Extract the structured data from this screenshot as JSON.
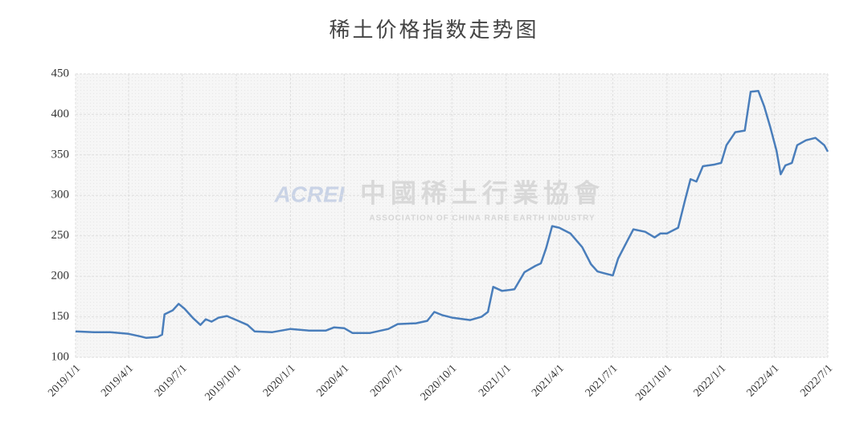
{
  "chart_data": {
    "type": "line",
    "title": "稀土价格指数走势图",
    "watermark": {
      "logo": "ACREI",
      "name": "中國稀土行業協會",
      "subtitle": "ASSOCIATION OF CHINA RARE EARTH INDUSTRY"
    },
    "x": [
      "2019/1/1",
      "2019/2/1",
      "2019/3/1",
      "2019/4/1",
      "2019/4/20",
      "2019/5/1",
      "2019/5/20",
      "2019/5/28",
      "2019/6/1",
      "2019/6/15",
      "2019/6/25",
      "2019/7/5",
      "2019/7/20",
      "2019/8/1",
      "2019/8/10",
      "2019/8/20",
      "2019/9/1",
      "2019/9/15",
      "2019/10/1",
      "2019/10/20",
      "2019/11/1",
      "2019/12/1",
      "2020/1/1",
      "2020/2/1",
      "2020/3/1",
      "2020/3/15",
      "2020/4/1",
      "2020/4/15",
      "2020/5/15",
      "2020/6/15",
      "2020/7/1",
      "2020/8/1",
      "2020/8/20",
      "2020/9/1",
      "2020/9/15",
      "2020/10/1",
      "2020/11/1",
      "2020/11/20",
      "2020/12/1",
      "2020/12/10",
      "2020/12/25",
      "2021/1/15",
      "2021/2/1",
      "2021/2/20",
      "2021/3/1",
      "2021/3/10",
      "2021/3/20",
      "2021/4/1",
      "2021/4/20",
      "2021/5/10",
      "2021/5/25",
      "2021/6/5",
      "2021/6/15",
      "2021/7/1",
      "2021/7/10",
      "2021/7/25",
      "2021/8/5",
      "2021/8/25",
      "2021/9/10",
      "2021/9/20",
      "2021/10/1",
      "2021/10/20",
      "2021/11/1",
      "2021/11/10",
      "2021/11/20",
      "2021/12/1",
      "2021/12/20",
      "2022/1/1",
      "2022/1/10",
      "2022/1/25",
      "2022/2/10",
      "2022/2/20",
      "2022/3/5",
      "2022/3/15",
      "2022/3/25",
      "2022/4/5",
      "2022/4/12",
      "2022/4/20",
      "2022/5/1",
      "2022/5/10",
      "2022/5/25",
      "2022/6/10",
      "2022/6/25",
      "2022/7/1"
    ],
    "series": [
      {
        "color": "#4a7ebb",
        "values": [
          132,
          131,
          131,
          129,
          126,
          124,
          125,
          128,
          153,
          158,
          166,
          160,
          148,
          140,
          147,
          144,
          149,
          151,
          146,
          140,
          132,
          131,
          135,
          133,
          133,
          137,
          136,
          130,
          130,
          135,
          141,
          142,
          145,
          156,
          152,
          149,
          146,
          150,
          156,
          187,
          182,
          184,
          205,
          213,
          216,
          235,
          262,
          260,
          253,
          236,
          215,
          206,
          204,
          201,
          222,
          243,
          258,
          255,
          248,
          253,
          253,
          260,
          295,
          320,
          317,
          336,
          338,
          340,
          362,
          378,
          380,
          428,
          429,
          410,
          385,
          355,
          326,
          337,
          340,
          362,
          368,
          371,
          362,
          354
        ]
      }
    ],
    "xlim": [
      "2019/1/1",
      "2022/7/1"
    ],
    "xticks": [
      "2019/1/1",
      "2019/4/1",
      "2019/7/1",
      "2019/10/1",
      "2020/1/1",
      "2020/4/1",
      "2020/7/1",
      "2020/10/1",
      "2021/1/1",
      "2021/4/1",
      "2021/7/1",
      "2021/10/1",
      "2022/1/1",
      "2022/4/1",
      "2022/7/1"
    ],
    "ylim": [
      100,
      450
    ],
    "yticks": [
      100,
      150,
      200,
      250,
      300,
      350,
      400,
      450
    ],
    "grid": true
  }
}
